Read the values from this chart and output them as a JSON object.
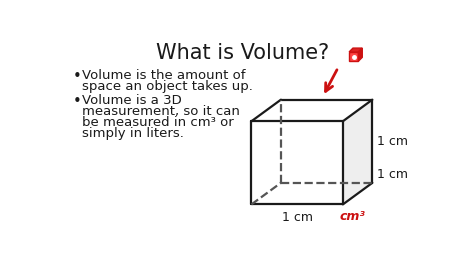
{
  "title": "What is Volume?",
  "bullet1_line1": "Volume is the amount of",
  "bullet1_line2": "space an object takes up.",
  "bullet2_line1": "Volume is a 3D",
  "bullet2_line2": "measurement, so it can",
  "bullet2_line3": "be measured in cm³ or",
  "bullet2_line4": "simply in liters.",
  "label_right": "1 cm",
  "label_bottom_right": "1 cm",
  "label_bottom": "1 cm",
  "label_red": "cm³",
  "bg_color": "#ffffff",
  "text_color": "#1a1a1a",
  "cube_edge_color": "#1a1a1a",
  "cube_bottom_fill": "#cccccc",
  "cube_front_fill": "#ffffff",
  "cube_right_fill": "#eeeeee",
  "cube_top_fill": "#ffffff",
  "red_color": "#cc1111",
  "title_fontsize": 15,
  "body_fontsize": 9.5,
  "label_fontsize": 9
}
